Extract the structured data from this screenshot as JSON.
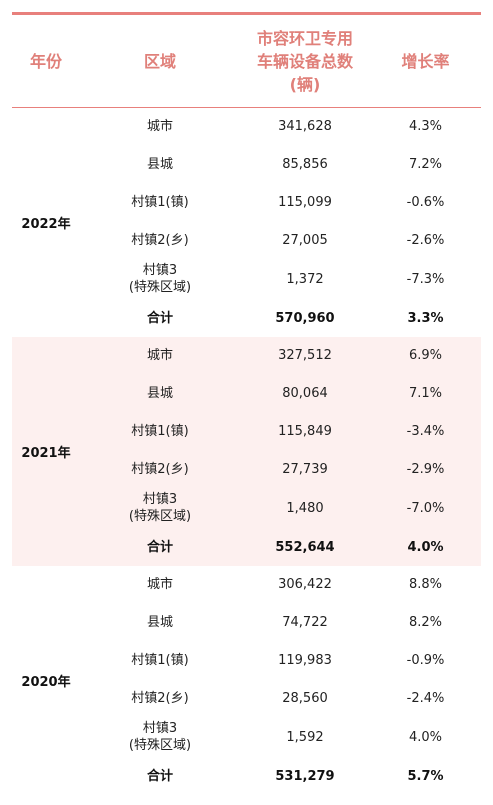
{
  "headers": {
    "year": "年份",
    "region": "区域",
    "count": "市容环卫专用\n车辆设备总数\n(辆)",
    "growth": "增长率"
  },
  "groups": [
    {
      "year": "2022年",
      "rows": [
        {
          "region": "城市",
          "count": "341,628",
          "growth": "4.3%"
        },
        {
          "region": "县城",
          "count": "85,856",
          "growth": "7.2%"
        },
        {
          "region": "村镇1(镇)",
          "count": "115,099",
          "growth": "-0.6%"
        },
        {
          "region": "村镇2(乡)",
          "count": "27,005",
          "growth": "-2.6%"
        },
        {
          "region": "村镇3\n(特殊区域)",
          "count": "1,372",
          "growth": "-7.3%"
        },
        {
          "region": "合计",
          "count": "570,960",
          "growth": "3.3%"
        }
      ]
    },
    {
      "year": "2021年",
      "rows": [
        {
          "region": "城市",
          "count": "327,512",
          "growth": "6.9%"
        },
        {
          "region": "县城",
          "count": "80,064",
          "growth": "7.1%"
        },
        {
          "region": "村镇1(镇)",
          "count": "115,849",
          "growth": "-3.4%"
        },
        {
          "region": "村镇2(乡)",
          "count": "27,739",
          "growth": "-2.9%"
        },
        {
          "region": "村镇3\n(特殊区域)",
          "count": "1,480",
          "growth": "-7.0%"
        },
        {
          "region": "合计",
          "count": "552,644",
          "growth": "4.0%"
        }
      ]
    },
    {
      "year": "2020年",
      "rows": [
        {
          "region": "城市",
          "count": "306,422",
          "growth": "8.8%"
        },
        {
          "region": "县城",
          "count": "74,722",
          "growth": "8.2%"
        },
        {
          "region": "村镇1(镇)",
          "count": "119,983",
          "growth": "-0.9%"
        },
        {
          "region": "村镇2(乡)",
          "count": "28,560",
          "growth": "-2.4%"
        },
        {
          "region": "村镇3\n(特殊区域)",
          "count": "1,592",
          "growth": "4.0%"
        },
        {
          "region": "合计",
          "count": "531,279",
          "growth": "5.7%"
        }
      ]
    }
  ],
  "colors": {
    "accent": "#e8807c",
    "shade": "#fdf0ef"
  }
}
